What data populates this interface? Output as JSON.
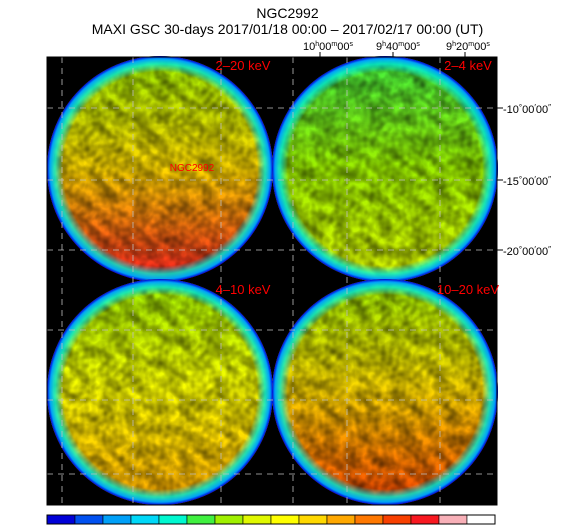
{
  "header": {
    "object": "NGC2992",
    "subtitle": "MAXI GSC 30-days 2017/01/18 00:00 – 2017/02/17 00:00 (UT)"
  },
  "ra_axis": [
    {
      "h": "10",
      "m": "00",
      "s": "00"
    },
    {
      "h": "9",
      "m": "40",
      "s": "00"
    },
    {
      "h": "9",
      "m": "20",
      "s": "00"
    }
  ],
  "dec_axis": [
    {
      "d": "-10",
      "m": "00",
      "s": "00"
    },
    {
      "d": "-15",
      "m": "00",
      "s": "00"
    },
    {
      "d": "-20",
      "m": "00",
      "s": "00"
    }
  ],
  "panels": [
    {
      "band": "2–20 keV",
      "label_color": "#ff0000",
      "mean_level": 0.62,
      "gradient": 0.45
    },
    {
      "band": "2–4 keV",
      "label_color": "#ff0000",
      "mean_level": 0.4,
      "gradient": 0.18
    },
    {
      "band": "4–10 keV",
      "label_color": "#ff0000",
      "mean_level": 0.52,
      "gradient": 0.25
    },
    {
      "band": "10–20 keV",
      "label_color": "#ff0000",
      "mean_level": 0.63,
      "gradient": 0.4
    }
  ],
  "source": {
    "name": "NGC2992",
    "color": "#ff0000"
  },
  "colorbar": [
    "#0000d8",
    "#0050f0",
    "#00a0f8",
    "#00d8f8",
    "#00f8d0",
    "#40f040",
    "#a0f000",
    "#e0f800",
    "#ffff00",
    "#ffd800",
    "#ffa800",
    "#ff7800",
    "#f84000",
    "#f81820",
    "#f8b0b8",
    "#ffffff"
  ]
}
